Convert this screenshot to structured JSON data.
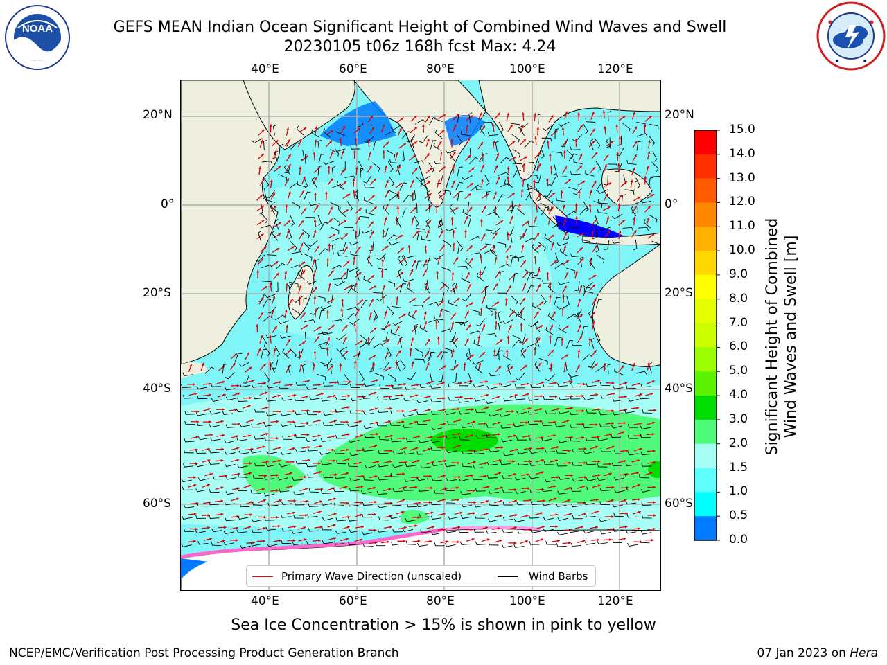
{
  "title": {
    "line1": "GEFS MEAN Indian Ocean Significant Height of Combined Wind Waves and Swell",
    "line2": "20230105 t06z 168h fcst   Max: 4.24"
  },
  "logos": {
    "noaa": {
      "icon": "noaa-logo",
      "text": "NOAA"
    },
    "nws": {
      "icon": "nws-logo"
    }
  },
  "map": {
    "lon_labels": [
      "40°E",
      "60°E",
      "80°E",
      "100°E",
      "120°E"
    ],
    "lat_labels_left": [
      "20°N",
      "0°",
      "20°S",
      "40°S",
      "60°S"
    ],
    "lat_labels_right": [
      "20°N",
      "0°",
      "20°S",
      "40°S",
      "60°S"
    ],
    "legend": {
      "wave_direction": "Primary Wave Direction (unscaled)",
      "wind_barbs": "Wind Barbs",
      "wave_color": "#ff0000",
      "barb_color": "#000000"
    },
    "land_color": "#efefdf"
  },
  "colorbar": {
    "label_line1": "Significant Height of Combined",
    "label_line2": "Wind Waves and Swell [m]",
    "ticks": [
      "15.0",
      "14.0",
      "13.0",
      "12.0",
      "11.0",
      "10.0",
      "9.0",
      "8.0",
      "7.0",
      "6.0",
      "5.0",
      "4.0",
      "3.0",
      "2.0",
      "1.5",
      "1.0",
      "0.5",
      "0.0"
    ],
    "colors": [
      "#ff0000",
      "#ff2f00",
      "#ff5a00",
      "#ff8800",
      "#ffb000",
      "#ffd800",
      "#ffff00",
      "#e6ff00",
      "#ccff00",
      "#9bfe00",
      "#5cf200",
      "#00dd00",
      "#50fa7a",
      "#a8fff5",
      "#5ffffe",
      "#00fefe",
      "#007bff",
      "#0000ff"
    ]
  },
  "ice_note": "Sea Ice Concentration > 15% is shown in pink to yellow",
  "footer": {
    "left": "NCEP/EMC/Verification Post Processing Product Generation Branch",
    "date": "07 Jan 2023 on ",
    "host": "Hera"
  }
}
